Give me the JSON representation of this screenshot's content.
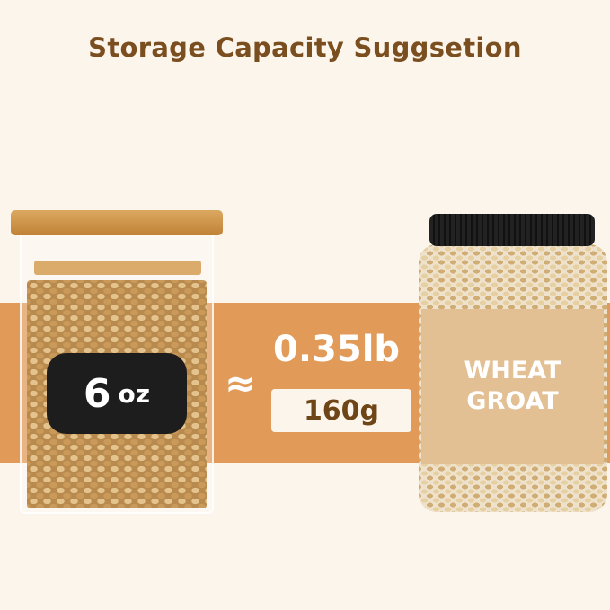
{
  "title": "Storage Capacity Suggsetion",
  "jar_tag": {
    "number": "6",
    "unit": "oz"
  },
  "approx_symbol": "≈",
  "weight_lb": "0.35lb",
  "weight_g": "160g",
  "product_label": {
    "line1": "WHEAT",
    "line2": "GROAT"
  },
  "colors": {
    "background": "#fcf5ec",
    "band": "#e29a58",
    "title": "#7a4e1f",
    "label": "#e3c094"
  }
}
